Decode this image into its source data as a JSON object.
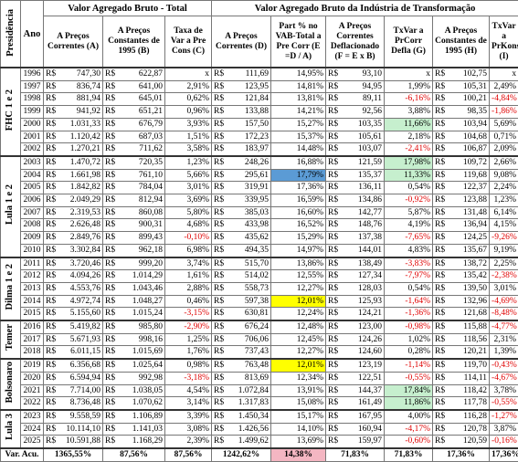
{
  "header": {
    "president_col": "Presidência",
    "year_col": "Ano",
    "groups": [
      "Valor Agregado Bruto - Total",
      "Valor Agregado Bruto da Indústria de Transformação"
    ],
    "columns": [
      "A Preços Correntes (A)",
      "A Preços Constantes de 1995 (B)",
      "Taxa de Var a Pre Cons (C)",
      "A Preços Correntes (D)",
      "Part % no VAB-Total a Pre Corr (E =D / A)",
      "A Preços Correntes Deflacionado (F = E x B)",
      "TxVar a PrCorr Defla (G)",
      "A Preços Constantes de 1995 (H)",
      "TxVar a PrKons (I)"
    ]
  },
  "currency": "R$",
  "presidencies": [
    {
      "label": "FHC 1 e 2",
      "rows": [
        [
          "1996",
          "747,30",
          "622,87",
          "x",
          "111,69",
          "14,95%",
          "93,10",
          "x",
          "102,75",
          "x"
        ],
        [
          "1997",
          "836,74",
          "641,00",
          "2,91%",
          "123,95",
          "14,81%",
          "94,95",
          "1,99%",
          "105,31",
          "2,49%"
        ],
        [
          "1998",
          "881,94",
          "645,01",
          "0,62%",
          "121,84",
          "13,81%",
          "89,11",
          "-6,16%",
          "100,21",
          "-4,84%"
        ],
        [
          "1999",
          "941,92",
          "651,21",
          "0,96%",
          "133,88",
          "14,21%",
          "92,56",
          "3,88%",
          "98,35",
          "-1,86%"
        ],
        [
          "2000",
          "1.031,33",
          "676,79",
          "3,93%",
          "157,50",
          "15,27%",
          "103,35",
          {
            "text": "11,66%",
            "highlight": "#c6efce"
          },
          "103,94",
          "5,69%"
        ],
        [
          "2001",
          "1.120,42",
          "687,03",
          "1,51%",
          "172,23",
          "15,37%",
          "105,61",
          "2,18%",
          "104,68",
          "0,71%"
        ],
        [
          "2002",
          "1.270,21",
          "711,62",
          "3,58%",
          "183,97",
          "14,48%",
          "103,07",
          "-2,41%",
          "106,87",
          "2,09%"
        ]
      ]
    },
    {
      "label": "Lula 1 e 2",
      "rows": [
        [
          "2003",
          "1.470,72",
          "720,35",
          "1,23%",
          "248,26",
          "16,88%",
          "121,59",
          {
            "text": "17,98%",
            "highlight": "#c6efce"
          },
          "109,72",
          "2,66%"
        ],
        [
          "2004",
          "1.661,98",
          "761,10",
          "5,66%",
          "295,61",
          {
            "text": "17,79%",
            "highlight": "#5b9bd5"
          },
          "135,37",
          {
            "text": "11,33%",
            "highlight": "#c6efce"
          },
          "119,68",
          "9,08%"
        ],
        [
          "2005",
          "1.842,82",
          "784,04",
          "3,01%",
          "319,91",
          "17,36%",
          "136,11",
          "0,54%",
          "122,37",
          "2,24%"
        ],
        [
          "2006",
          "2.049,29",
          "812,94",
          "3,69%",
          "339,95",
          "16,59%",
          "134,86",
          "-0,92%",
          "123,88",
          "1,23%"
        ],
        [
          "2007",
          "2.319,53",
          "860,08",
          "5,80%",
          "385,03",
          "16,60%",
          "142,77",
          "5,87%",
          "131,48",
          "6,14%"
        ],
        [
          "2008",
          "2.626,48",
          "900,31",
          "4,68%",
          "433,98",
          "16,52%",
          "148,76",
          "4,19%",
          "136,94",
          "4,15%"
        ],
        [
          "2009",
          "2.849,76",
          "899,43",
          "-0,10%",
          "435,62",
          "15,29%",
          "137,38",
          "-7,65%",
          "124,25",
          "-9,26%"
        ],
        [
          "2010",
          "3.302,84",
          "962,18",
          "6,98%",
          "494,35",
          "14,97%",
          "144,01",
          "4,83%",
          "135,67",
          "9,19%"
        ]
      ]
    },
    {
      "label": "Dilma 1 e 2",
      "rows": [
        [
          "2011",
          "3.720,46",
          "999,20",
          "3,74%",
          "515,70",
          "13,86%",
          "138,49",
          "-3,83%",
          "138,72",
          "2,25%"
        ],
        [
          "2012",
          "4.094,26",
          "1.014,29",
          "1,61%",
          "514,02",
          "12,55%",
          "127,34",
          "-7,97%",
          "135,42",
          "-2,38%"
        ],
        [
          "2013",
          "4.553,76",
          "1.043,46",
          "2,88%",
          "558,73",
          "12,27%",
          "128,03",
          "0,54%",
          "139,50",
          "3,01%"
        ],
        [
          "2014",
          "4.972,74",
          "1.048,27",
          "0,46%",
          "597,38",
          {
            "text": "12,01%",
            "highlight": "#ffff00"
          },
          "125,93",
          "-1,64%",
          "132,96",
          "-4,69%"
        ],
        [
          "2015",
          "5.155,60",
          "1.015,24",
          "-3,15%",
          "630,81",
          "12,24%",
          "124,21",
          "-1,36%",
          "121,68",
          "-8,48%"
        ]
      ]
    },
    {
      "label": "Temer",
      "rows": [
        [
          "2016",
          "5.419,82",
          "985,80",
          "-2,90%",
          "676,24",
          "12,48%",
          "123,00",
          "-0,98%",
          "115,88",
          "-4,77%"
        ],
        [
          "2017",
          "5.671,93",
          "998,16",
          "1,25%",
          "706,06",
          "12,45%",
          "124,26",
          "1,02%",
          "118,56",
          "2,31%"
        ],
        [
          "2018",
          "6.011,15",
          "1.015,69",
          "1,76%",
          "737,43",
          "12,27%",
          "124,60",
          "0,28%",
          "120,21",
          "1,39%"
        ]
      ]
    },
    {
      "label": "Bolsonaro",
      "rows": [
        [
          "2019",
          "6.356,68",
          "1.025,64",
          "0,98%",
          "763,48",
          {
            "text": "12,01%",
            "highlight": "#ffff00"
          },
          "123,19",
          "-1,14%",
          "119,70",
          "-0,43%"
        ],
        [
          "2020",
          "6.594,94",
          "992,98",
          "-3,18%",
          "813,69",
          "12,34%",
          "122,51",
          "-0,55%",
          "114,11",
          "-4,67%"
        ],
        [
          "2021",
          "7.714,00",
          "1.038,05",
          "4,54%",
          "1.072,84",
          "13,91%",
          "144,37",
          {
            "text": "17,84%",
            "highlight": "#c6efce"
          },
          "118,42",
          "3,78%"
        ],
        [
          "2022",
          "8.736,48",
          "1.070,62",
          "3,14%",
          "1.317,83",
          "15,08%",
          "161,49",
          {
            "text": "11,86%",
            "highlight": "#c6efce"
          },
          "117,78",
          "-0,55%"
        ]
      ]
    },
    {
      "label": "Lula 3",
      "rows": [
        [
          "2023",
          "9.558,59",
          "1.106,89",
          "3,39%",
          "1.450,34",
          "15,17%",
          "167,95",
          "4,00%",
          "116,28",
          "-1,27%"
        ],
        [
          "2024",
          "10.114,10",
          "1.141,03",
          "3,08%",
          "1.426,56",
          "14,10%",
          "160,94",
          "-4,17%",
          "120,78",
          "3,87%"
        ],
        [
          "2025",
          "10.591,88",
          "1.168,29",
          "2,39%",
          "1.499,62",
          "13,69%",
          "159,97",
          "-0,60%",
          "120,59",
          "-0,16%"
        ]
      ]
    }
  ],
  "total": {
    "label": "Var. Acu.",
    "values": [
      "1365,55%",
      "87,56%",
      "87,56%",
      "1242,62%",
      {
        "text": "14,38%",
        "highlight": "#f4b6c2"
      },
      "71,83%",
      "71,83%",
      "17,36%",
      "17,36%"
    ]
  }
}
